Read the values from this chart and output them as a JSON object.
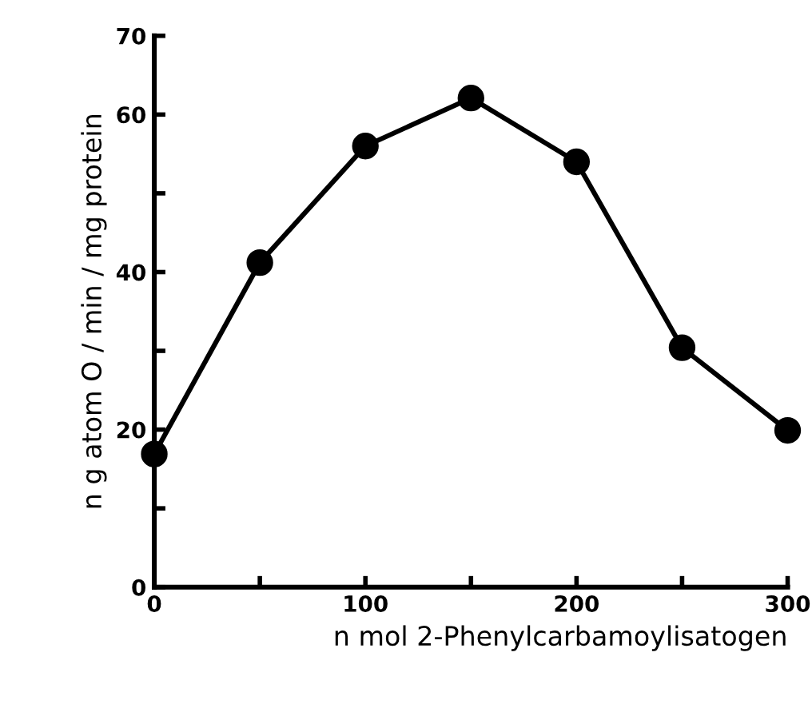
{
  "chart_data": {
    "type": "line",
    "xlabel": "n mol 2-Phenylcarbamoylisatogen",
    "ylabel": "n g atom O / min / mg protein",
    "x": [
      0,
      50,
      100,
      150,
      200,
      250,
      300
    ],
    "series": [
      {
        "color": "#000000",
        "values": [
          16.9,
          41.2,
          56.0,
          62.1,
          54.0,
          30.4,
          19.9
        ]
      }
    ],
    "xlim": [
      0,
      300
    ],
    "ylim": [
      0,
      70
    ],
    "xticks": [
      0,
      {
        "value": 50,
        "label": null
      },
      100,
      {
        "value": 150,
        "label": null
      },
      200,
      {
        "value": 250,
        "label": null
      },
      300
    ],
    "yticks": [
      0,
      {
        "value": 10,
        "label": null
      },
      20,
      {
        "value": 30,
        "label": null
      },
      40,
      {
        "value": 50,
        "label": null
      },
      60,
      70
    ],
    "marker": "circle",
    "line_style": "solid",
    "grid": false,
    "legend": false
  }
}
